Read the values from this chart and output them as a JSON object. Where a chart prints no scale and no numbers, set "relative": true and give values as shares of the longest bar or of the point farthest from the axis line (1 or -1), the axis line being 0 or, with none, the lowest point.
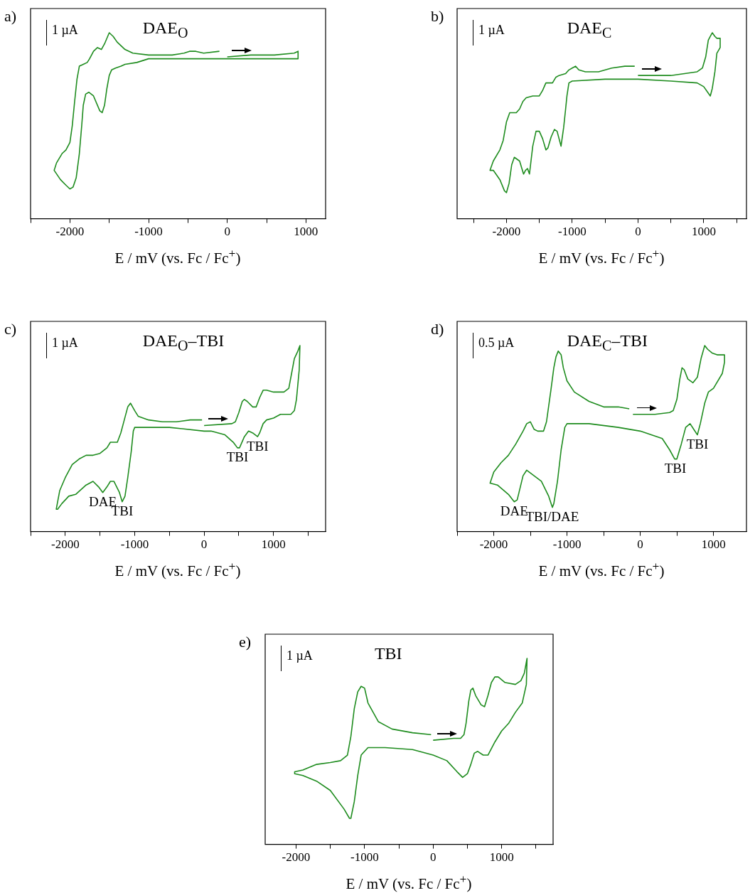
{
  "chart_data": [
    {
      "type": "line",
      "title": "a)",
      "xlabel": "E / mV (vs. Fc / Fc$^{+}$)",
      "relative": true,
      "color": "#1e8c1e",
      "xlim": [
        -2500,
        1250
      ],
      "xticks": [
        {
          "value": -2500,
          "label": null
        },
        -2000,
        {
          "value": -1500,
          "label": null
        },
        -1000,
        {
          "value": -500,
          "label": null
        },
        0,
        {
          "value": 500,
          "label": null
        },
        1000
      ],
      "annotations": [
        "1 µA",
        "DAE$_{O}$"
      ],
      "x": [
        0,
        300,
        600,
        850,
        900,
        900,
        600,
        0,
        -1000,
        -1150,
        -1300,
        -1350,
        -1420,
        -1470,
        -1500,
        -1530,
        -1560,
        -1590,
        -1620,
        -1700,
        -1760,
        -1800,
        -1830,
        -1850,
        -1880,
        -1920,
        -1960,
        -2000,
        -2050,
        -2120,
        -2200,
        -2170,
        -2100,
        -2050,
        -2000,
        -1970,
        -1940,
        -1910,
        -1880,
        -1830,
        -1780,
        -1750,
        -1700,
        -1650,
        -1600,
        -1560,
        -1500,
        -1450,
        -1400,
        -1300,
        -1200,
        -1000,
        -700,
        -550,
        -480,
        -400,
        -300,
        -100
      ],
      "values": [
        0.87,
        0.88,
        0.88,
        0.89,
        0.9,
        0.86,
        0.86,
        0.86,
        0.86,
        0.84,
        0.83,
        0.82,
        0.81,
        0.8,
        0.77,
        0.7,
        0.61,
        0.57,
        0.58,
        0.66,
        0.68,
        0.67,
        0.61,
        0.5,
        0.35,
        0.22,
        0.17,
        0.16,
        0.18,
        0.21,
        0.26,
        0.3,
        0.35,
        0.37,
        0.41,
        0.5,
        0.63,
        0.75,
        0.82,
        0.83,
        0.84,
        0.86,
        0.9,
        0.92,
        0.91,
        0.94,
        1.0,
        0.98,
        0.95,
        0.91,
        0.89,
        0.88,
        0.88,
        0.89,
        0.9,
        0.9,
        0.89,
        0.9
      ]
    },
    {
      "type": "line",
      "title": "b)",
      "xlabel": "E / mV (vs. Fc / Fc$^{+}$)",
      "relative": true,
      "color": "#1e8c1e",
      "xlim": [
        -2750,
        1650
      ],
      "xticks": [
        {
          "value": -2500,
          "label": null
        },
        -2000,
        {
          "value": -1500,
          "label": null
        },
        -1000,
        {
          "value": -500,
          "label": null
        },
        0,
        {
          "value": 500,
          "label": null
        },
        1000,
        {
          "value": 1500,
          "label": null
        }
      ],
      "annotations": [
        "1 µA",
        "DAE$_{C}$"
      ],
      "x": [
        0,
        500,
        900,
        980,
        1030,
        1070,
        1100,
        1130,
        1170,
        1200,
        1250,
        1250,
        1200,
        1170,
        1130,
        1100,
        1060,
        1000,
        900,
        500,
        0,
        -500,
        -1000,
        -1050,
        -1080,
        -1100,
        -1130,
        -1170,
        -1230,
        -1270,
        -1320,
        -1370,
        -1400,
        -1450,
        -1500,
        -1550,
        -1600,
        -1640,
        -1650,
        -1680,
        -1710,
        -1740,
        -1800,
        -1880,
        -1920,
        -1960,
        -2000,
        -2030,
        -2100,
        -2200,
        -2250,
        -2200,
        -2100,
        -2050,
        -2000,
        -1950,
        -1900,
        -1850,
        -1800,
        -1750,
        -1700,
        -1600,
        -1500,
        -1450,
        -1400,
        -1350,
        -1300,
        -1250,
        -1200,
        -1100,
        -1050,
        -1000,
        -950,
        -900,
        -800,
        -600,
        -400,
        -200,
        -50
      ],
      "values": [
        0.77,
        0.77,
        0.79,
        0.81,
        0.87,
        0.96,
        0.98,
        1.0,
        0.98,
        0.97,
        0.97,
        0.92,
        0.89,
        0.79,
        0.7,
        0.66,
        0.68,
        0.71,
        0.73,
        0.74,
        0.75,
        0.75,
        0.74,
        0.73,
        0.66,
        0.59,
        0.49,
        0.39,
        0.47,
        0.48,
        0.44,
        0.38,
        0.37,
        0.43,
        0.47,
        0.47,
        0.39,
        0.27,
        0.24,
        0.27,
        0.26,
        0.24,
        0.31,
        0.33,
        0.29,
        0.19,
        0.14,
        0.15,
        0.21,
        0.26,
        0.26,
        0.31,
        0.37,
        0.42,
        0.52,
        0.57,
        0.57,
        0.57,
        0.59,
        0.63,
        0.65,
        0.66,
        0.66,
        0.69,
        0.73,
        0.73,
        0.73,
        0.76,
        0.77,
        0.78,
        0.8,
        0.81,
        0.82,
        0.8,
        0.79,
        0.79,
        0.81,
        0.82,
        0.82
      ]
    },
    {
      "type": "line",
      "title": "c)",
      "xlabel": "E / mV (vs. Fc / Fc$^{+}$)",
      "relative": true,
      "color": "#1e8c1e",
      "xlim": [
        -2500,
        1750
      ],
      "xticks": [
        {
          "value": -2500,
          "label": null
        },
        -2000,
        {
          "value": -1500,
          "label": null
        },
        -1000,
        {
          "value": -500,
          "label": null
        },
        0,
        {
          "value": 500,
          "label": null
        },
        1000,
        {
          "value": 1500,
          "label": null
        }
      ],
      "annotations": [
        "1 µA",
        "DAE$_{O}$–TBI",
        {
          "text": "DAE",
          "x": -1460,
          "y": 0.21
        },
        {
          "text": "TBI",
          "x": -1180,
          "y": 0.16
        },
        {
          "text": "TBI",
          "x": 480,
          "y": 0.45
        },
        {
          "text": "TBI",
          "x": 770,
          "y": 0.51
        }
      ],
      "x": [
        0,
        400,
        450,
        500,
        550,
        580,
        620,
        700,
        750,
        800,
        850,
        900,
        1000,
        1150,
        1220,
        1270,
        1300,
        1350,
        1380,
        1370,
        1330,
        1300,
        1250,
        1100,
        1000,
        900,
        850,
        800,
        770,
        700,
        640,
        580,
        510,
        480,
        420,
        300,
        100,
        0,
        -500,
        -1000,
        -1020,
        -1050,
        -1100,
        -1140,
        -1180,
        -1220,
        -1300,
        -1350,
        -1400,
        -1460,
        -1520,
        -1600,
        -1700,
        -1850,
        -1950,
        -2050,
        -2110,
        -2130,
        -2080,
        -2000,
        -1900,
        -1800,
        -1700,
        -1600,
        -1500,
        -1400,
        -1350,
        -1250,
        -1200,
        -1150,
        -1100,
        -1060,
        -1000,
        -950,
        -800,
        -600,
        -400,
        -200,
        -30
      ],
      "values": [
        0.57,
        0.58,
        0.59,
        0.64,
        0.7,
        0.71,
        0.7,
        0.67,
        0.67,
        0.72,
        0.76,
        0.76,
        0.75,
        0.75,
        0.77,
        0.87,
        0.93,
        0.97,
        1.0,
        0.87,
        0.71,
        0.65,
        0.63,
        0.63,
        0.61,
        0.6,
        0.58,
        0.53,
        0.51,
        0.53,
        0.54,
        0.51,
        0.45,
        0.45,
        0.48,
        0.52,
        0.54,
        0.54,
        0.56,
        0.56,
        0.54,
        0.43,
        0.29,
        0.19,
        0.16,
        0.21,
        0.27,
        0.27,
        0.24,
        0.21,
        0.24,
        0.27,
        0.25,
        0.2,
        0.19,
        0.15,
        0.12,
        0.12,
        0.22,
        0.29,
        0.36,
        0.39,
        0.41,
        0.41,
        0.42,
        0.45,
        0.48,
        0.48,
        0.53,
        0.6,
        0.67,
        0.69,
        0.65,
        0.62,
        0.6,
        0.59,
        0.59,
        0.6,
        0.6
      ]
    },
    {
      "type": "line",
      "title": "d)",
      "xlabel": "E / mV (vs. Fc / Fc$^{+}$)",
      "relative": true,
      "color": "#1e8c1e",
      "xlim": [
        -2500,
        1450
      ],
      "xticks": [
        {
          "value": -2500,
          "label": null
        },
        -2000,
        {
          "value": -1500,
          "label": null
        },
        -1000,
        {
          "value": -500,
          "label": null
        },
        0,
        {
          "value": 500,
          "label": null
        },
        1000
      ],
      "annotations": [
        "0.5 µA",
        "DAE$_{C}$–TBI",
        {
          "text": "DAE",
          "x": -1720,
          "y": 0.16
        },
        {
          "text": "TBI/DAE",
          "x": -1200,
          "y": 0.13
        },
        {
          "text": "TBI",
          "x": 480,
          "y": 0.39
        },
        {
          "text": "TBI",
          "x": 780,
          "y": 0.52
        }
      ],
      "x": [
        -100,
        200,
        400,
        450,
        500,
        540,
        570,
        600,
        650,
        720,
        780,
        830,
        880,
        920,
        980,
        1050,
        1150,
        1150,
        1120,
        1000,
        930,
        880,
        820,
        780,
        730,
        680,
        620,
        560,
        500,
        470,
        400,
        300,
        0,
        -300,
        -700,
        -1000,
        -1030,
        -1080,
        -1130,
        -1180,
        -1200,
        -1250,
        -1350,
        -1450,
        -1550,
        -1600,
        -1680,
        -1720,
        -1800,
        -1950,
        -2050,
        -2000,
        -1900,
        -1800,
        -1700,
        -1600,
        -1550,
        -1500,
        -1450,
        -1400,
        -1320,
        -1280,
        -1220,
        -1180,
        -1150,
        -1120,
        -1080,
        -1050,
        -1000,
        -900,
        -700,
        -500,
        -300,
        -150
      ],
      "values": [
        0.63,
        0.63,
        0.64,
        0.65,
        0.71,
        0.82,
        0.88,
        0.87,
        0.82,
        0.8,
        0.83,
        0.93,
        1.0,
        0.98,
        0.96,
        0.95,
        0.95,
        0.91,
        0.85,
        0.77,
        0.75,
        0.69,
        0.58,
        0.52,
        0.55,
        0.58,
        0.56,
        0.47,
        0.39,
        0.39,
        0.44,
        0.5,
        0.54,
        0.56,
        0.58,
        0.58,
        0.56,
        0.44,
        0.27,
        0.15,
        0.13,
        0.19,
        0.27,
        0.3,
        0.33,
        0.3,
        0.17,
        0.16,
        0.2,
        0.25,
        0.26,
        0.32,
        0.37,
        0.41,
        0.47,
        0.54,
        0.58,
        0.59,
        0.55,
        0.54,
        0.54,
        0.59,
        0.76,
        0.88,
        0.94,
        0.97,
        0.95,
        0.88,
        0.81,
        0.75,
        0.7,
        0.67,
        0.67,
        0.66
      ]
    },
    {
      "type": "line",
      "title": "e)",
      "xlabel": "E / mV (vs. Fc / Fc$^{+}$)",
      "relative": true,
      "color": "#1e8c1e",
      "xlim": [
        -2450,
        1750
      ],
      "xticks": [
        -2000,
        {
          "value": -1500,
          "label": null
        },
        -1000,
        {
          "value": -500,
          "label": null
        },
        0,
        {
          "value": 500,
          "label": null
        },
        1000,
        {
          "value": 1500,
          "label": null
        }
      ],
      "annotations": [
        "1 µA",
        "TBI"
      ],
      "x": [
        0,
        300,
        400,
        450,
        480,
        520,
        550,
        580,
        620,
        700,
        750,
        800,
        850,
        900,
        950,
        1050,
        1200,
        1280,
        1330,
        1370,
        1360,
        1300,
        1200,
        1100,
        1000,
        900,
        800,
        730,
        650,
        600,
        550,
        500,
        430,
        350,
        200,
        0,
        -300,
        -700,
        -950,
        -1050,
        -1100,
        -1150,
        -1200,
        -1220,
        -1300,
        -1500,
        -1700,
        -1900,
        -2020,
        -2020,
        -1900,
        -1700,
        -1500,
        -1350,
        -1250,
        -1200,
        -1150,
        -1100,
        -1050,
        -1000,
        -950,
        -800,
        -600,
        -300,
        -30
      ],
      "values": [
        0.56,
        0.57,
        0.57,
        0.59,
        0.65,
        0.77,
        0.83,
        0.84,
        0.8,
        0.75,
        0.74,
        0.8,
        0.87,
        0.9,
        0.9,
        0.87,
        0.86,
        0.88,
        0.92,
        1.0,
        0.86,
        0.76,
        0.71,
        0.65,
        0.61,
        0.55,
        0.48,
        0.48,
        0.5,
        0.49,
        0.43,
        0.38,
        0.36,
        0.39,
        0.45,
        0.48,
        0.51,
        0.52,
        0.52,
        0.48,
        0.37,
        0.23,
        0.14,
        0.14,
        0.19,
        0.29,
        0.34,
        0.37,
        0.38,
        0.39,
        0.4,
        0.43,
        0.44,
        0.45,
        0.48,
        0.58,
        0.73,
        0.82,
        0.85,
        0.84,
        0.76,
        0.66,
        0.62,
        0.6,
        0.59
      ]
    }
  ]
}
